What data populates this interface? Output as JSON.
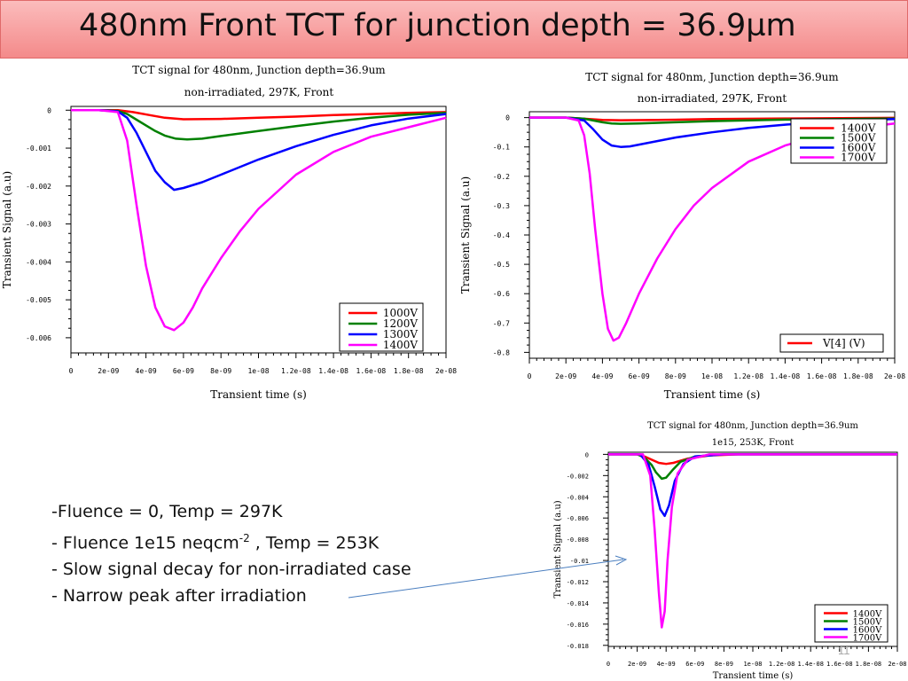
{
  "slide": {
    "title": "480nm Front TCT for junction depth = 36.9µm",
    "page_number": "11",
    "bullets": [
      {
        "text": "-Fluence = 0,  Temp = 297K"
      },
      {
        "pre": "-  Fluence 1e15 neqcm",
        "sup": "-2",
        "post": " , Temp = 253K"
      },
      {
        "text": "- Slow signal decay for non-irradiated case"
      },
      {
        "text": "- Narrow peak after irradiation"
      }
    ]
  },
  "chart_data": [
    {
      "type": "line",
      "title": "TCT signal for 480nm, Junction depth=36.9um",
      "subtitle": "non-irradiated, 297K, Front",
      "xlabel": "Transient time (s)",
      "ylabel": "Transient Signal (a.u)",
      "xlim": [
        0,
        2e-08
      ],
      "ylim": [
        -0.0064,
        0.0001
      ],
      "xticks": [
        "0",
        "2e-09",
        "4e-09",
        "6e-09",
        "8e-09",
        "1e-08",
        "1.2e-08",
        "1.4e-08",
        "1.6e-08",
        "1.8e-08",
        "2e-08"
      ],
      "yticks": [
        "0",
        "-0.001",
        "-0.002",
        "-0.003",
        "-0.004",
        "-0.005",
        "-0.006"
      ],
      "legend_position": "bottom-right",
      "series": [
        {
          "name": "1000V",
          "color": "#ff0000",
          "x": [
            0,
            1.5e-09,
            2.5e-09,
            3.3e-09,
            4.2e-09,
            5e-09,
            6e-09,
            8e-09,
            1e-08,
            1.2e-08,
            1.4e-08,
            1.6e-08,
            1.8e-08,
            2e-08
          ],
          "y": [
            0,
            0,
            0,
            -5e-05,
            -0.00013,
            -0.0002,
            -0.00024,
            -0.00023,
            -0.0002,
            -0.00017,
            -0.00013,
            -0.0001,
            -7e-05,
            -5e-05
          ]
        },
        {
          "name": "1200V",
          "color": "#008000",
          "x": [
            0,
            1.5e-09,
            2.5e-09,
            3e-09,
            3.5e-09,
            4e-09,
            4.5e-09,
            5e-09,
            5.6e-09,
            6.2e-09,
            7e-09,
            8e-09,
            1e-08,
            1.2e-08,
            1.4e-08,
            1.6e-08,
            1.8e-08,
            2e-08
          ],
          "y": [
            0,
            0,
            -2e-05,
            -0.0001,
            -0.00025,
            -0.0004,
            -0.00055,
            -0.00067,
            -0.00075,
            -0.00077,
            -0.00075,
            -0.00068,
            -0.00055,
            -0.00042,
            -0.0003,
            -0.0002,
            -0.00012,
            -7e-05
          ]
        },
        {
          "name": "1300V",
          "color": "#0000ff",
          "x": [
            0,
            1.5e-09,
            2.5e-09,
            3e-09,
            3.5e-09,
            4e-09,
            4.5e-09,
            5e-09,
            5.5e-09,
            6e-09,
            7e-09,
            8e-09,
            1e-08,
            1.2e-08,
            1.4e-08,
            1.6e-08,
            1.8e-08,
            2e-08
          ],
          "y": [
            0,
            0,
            -3e-05,
            -0.0002,
            -0.0006,
            -0.0011,
            -0.0016,
            -0.0019,
            -0.0021,
            -0.00205,
            -0.0019,
            -0.0017,
            -0.0013,
            -0.00095,
            -0.00065,
            -0.0004,
            -0.00022,
            -0.0001
          ]
        },
        {
          "name": "1400V",
          "color": "#ff00ff",
          "x": [
            0,
            1.5e-09,
            2.5e-09,
            3e-09,
            3.5e-09,
            4e-09,
            4.5e-09,
            5e-09,
            5.5e-09,
            6e-09,
            6.5e-09,
            7e-09,
            8e-09,
            9e-09,
            1e-08,
            1.2e-08,
            1.4e-08,
            1.6e-08,
            1.8e-08,
            2e-08
          ],
          "y": [
            0,
            0,
            -5e-05,
            -0.0008,
            -0.0025,
            -0.0041,
            -0.0052,
            -0.0057,
            -0.0058,
            -0.0056,
            -0.0052,
            -0.0047,
            -0.0039,
            -0.0032,
            -0.0026,
            -0.0017,
            -0.0011,
            -0.0007,
            -0.00045,
            -0.0002
          ]
        }
      ]
    },
    {
      "type": "line",
      "title": "TCT signal for 480nm, Junction depth=36.9um",
      "subtitle": "non-irradiated, 297K, Front",
      "xlabel": "Transient time (s)",
      "ylabel": "Transient Signal (a.u)",
      "xlim": [
        0,
        2e-08
      ],
      "ylim": [
        -0.82,
        0.02
      ],
      "xticks": [
        "0",
        "2e-09",
        "4e-09",
        "6e-09",
        "8e-09",
        "1e-08",
        "1.2e-08",
        "1.4e-08",
        "1.6e-08",
        "1.8e-08",
        "2e-08"
      ],
      "yticks": [
        "0",
        "-0.1",
        "-0.2",
        "-0.3",
        "-0.4",
        "-0.5",
        "-0.6",
        "-0.7",
        "-0.8"
      ],
      "legend_position": "top-right",
      "extra_legend": {
        "name": "V[4] (V)",
        "color": "#ff0000",
        "position": "bottom-right"
      },
      "series": [
        {
          "name": "1400V",
          "color": "#ff0000",
          "x": [
            0,
            2e-09,
            3e-09,
            4e-09,
            5e-09,
            7e-09,
            1e-08,
            1.4e-08,
            2e-08
          ],
          "y": [
            0,
            0,
            -0.004,
            -0.008,
            -0.009,
            -0.008,
            -0.005,
            -0.003,
            -0.001
          ]
        },
        {
          "name": "1500V",
          "color": "#008000",
          "x": [
            0,
            2e-09,
            3e-09,
            3.5e-09,
            4e-09,
            4.5e-09,
            5e-09,
            6e-09,
            8e-09,
            1e-08,
            1.4e-08,
            2e-08
          ],
          "y": [
            0,
            0,
            -0.004,
            -0.01,
            -0.016,
            -0.02,
            -0.021,
            -0.02,
            -0.016,
            -0.012,
            -0.007,
            -0.003
          ]
        },
        {
          "name": "1600V",
          "color": "#0000ff",
          "x": [
            0,
            2e-09,
            3e-09,
            3.5e-09,
            4e-09,
            4.5e-09,
            5e-09,
            5.5e-09,
            6e-09,
            7e-09,
            8e-09,
            1e-08,
            1.2e-08,
            1.4e-08,
            1.6e-08,
            1.8e-08,
            2e-08
          ],
          "y": [
            0,
            0,
            -0.01,
            -0.04,
            -0.075,
            -0.095,
            -0.1,
            -0.098,
            -0.092,
            -0.08,
            -0.068,
            -0.05,
            -0.035,
            -0.024,
            -0.015,
            -0.009,
            -0.005
          ]
        },
        {
          "name": "1700V",
          "color": "#ff00ff",
          "x": [
            0,
            2e-09,
            2.7e-09,
            3e-09,
            3.3e-09,
            3.6e-09,
            4e-09,
            4.3e-09,
            4.6e-09,
            4.9e-09,
            5.3e-09,
            6e-09,
            7e-09,
            8e-09,
            9e-09,
            1e-08,
            1.2e-08,
            1.4e-08,
            1.6e-08,
            1.8e-08,
            2e-08
          ],
          "y": [
            0,
            0,
            -0.01,
            -0.06,
            -0.19,
            -0.38,
            -0.6,
            -0.72,
            -0.76,
            -0.75,
            -0.7,
            -0.6,
            -0.48,
            -0.38,
            -0.3,
            -0.24,
            -0.15,
            -0.095,
            -0.06,
            -0.035,
            -0.02
          ]
        }
      ]
    },
    {
      "type": "line",
      "title": "TCT signal for 480nm, Junction depth=36.9um",
      "subtitle": "1e15, 253K, Front",
      "xlabel": "Transient time (s)",
      "ylabel": "Transient Signal (a.u)",
      "xlim": [
        0,
        2e-08
      ],
      "ylim": [
        -0.0181,
        0.0002
      ],
      "xticks": [
        "0",
        "2e-09",
        "4e-09",
        "6e-09",
        "8e-09",
        "1e-08",
        "1.2e-08",
        "1.4e-08",
        "1.6e-08",
        "1.8e-08",
        "2e-08"
      ],
      "yticks": [
        "0",
        "-0.002",
        "-0.004",
        "-0.006",
        "-0.008",
        "-0.01",
        "-0.012",
        "-0.014",
        "-0.016",
        "-0.018"
      ],
      "legend_position": "bottom-right",
      "series": [
        {
          "name": "1400V",
          "color": "#ff0000",
          "x": [
            0,
            2e-09,
            2.5e-09,
            3e-09,
            3.5e-09,
            4e-09,
            4.5e-09,
            5.5e-09,
            7e-09,
            9e-09,
            2e-08
          ],
          "y": [
            0,
            0,
            -0.0002,
            -0.0005,
            -0.0008,
            -0.0009,
            -0.0008,
            -0.0004,
            -0.0001,
            0,
            0
          ]
        },
        {
          "name": "1500V",
          "color": "#008000",
          "x": [
            0,
            2e-09,
            2.5e-09,
            3e-09,
            3.3e-09,
            3.7e-09,
            4e-09,
            4.5e-09,
            5e-09,
            6e-09,
            8e-09,
            2e-08
          ],
          "y": [
            0,
            0,
            -0.0003,
            -0.001,
            -0.0017,
            -0.0023,
            -0.0022,
            -0.0014,
            -0.0007,
            -0.0002,
            0,
            0
          ]
        },
        {
          "name": "1600V",
          "color": "#0000ff",
          "x": [
            0,
            2.2e-09,
            2.8e-09,
            3.2e-09,
            3.6e-09,
            3.9e-09,
            4.2e-09,
            4.6e-09,
            5.2e-09,
            6e-09,
            8e-09,
            2e-08
          ],
          "y": [
            0,
            0,
            -0.001,
            -0.003,
            -0.0052,
            -0.0058,
            -0.0048,
            -0.0025,
            -0.0009,
            -0.0002,
            0,
            0
          ]
        },
        {
          "name": "1700V",
          "color": "#ff00ff",
          "x": [
            0,
            2.4e-09,
            2.9e-09,
            3.2e-09,
            3.5e-09,
            3.7e-09,
            3.9e-09,
            4.1e-09,
            4.4e-09,
            4.8e-09,
            5.5e-09,
            7e-09,
            2e-08
          ],
          "y": [
            0,
            0,
            -0.002,
            -0.007,
            -0.013,
            -0.0163,
            -0.0148,
            -0.01,
            -0.005,
            -0.0018,
            -0.0005,
            0,
            0
          ]
        }
      ]
    }
  ]
}
